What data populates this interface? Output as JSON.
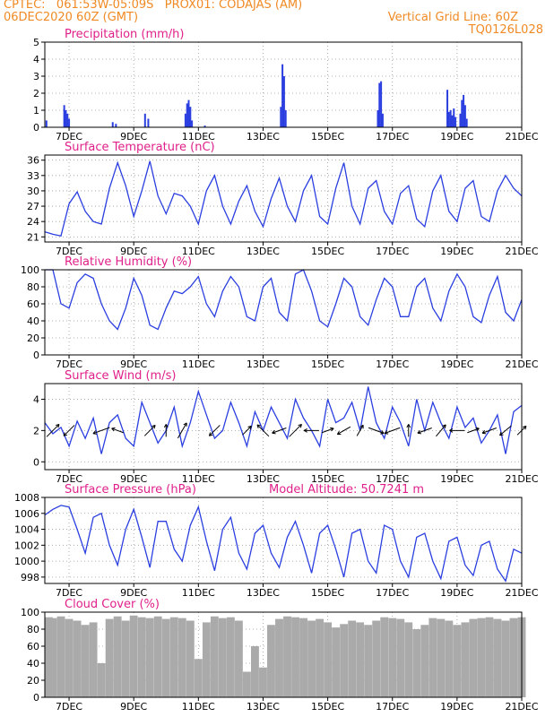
{
  "header": {
    "line1_left": "CPTEC:   061:53W-05:09S   PROX01: CODAJAS (AM)",
    "line2_left": "06DEC2020 60Z (GMT)",
    "line2_right": "Vertical Grid Line: 60Z",
    "line3_right": "TQ0126L028",
    "color": "#f08a24"
  },
  "x_axis": {
    "tick_labels": [
      "7DEC",
      "9DEC",
      "11DEC",
      "13DEC",
      "15DEC",
      "17DEC",
      "19DEC",
      "21DEC"
    ],
    "tick_days": [
      7,
      9,
      11,
      13,
      15,
      17,
      19,
      21
    ],
    "xlim_days": [
      6.25,
      21.0
    ]
  },
  "colors": {
    "line": "#2b3fe0",
    "title": "#e0208a",
    "cloud": "#aaaaaa",
    "wind_arrow": "#000000"
  },
  "chart_data": [
    {
      "id": "precip",
      "type": "bar",
      "title": "Precipitation (mm/h)",
      "ylim": [
        0,
        5
      ],
      "yticks": [
        0,
        1,
        2,
        3,
        4,
        5
      ],
      "grid": true,
      "x_days": [
        6.3,
        6.85,
        6.9,
        6.95,
        7.0,
        8.35,
        8.45,
        9.35,
        9.45,
        10.6,
        10.65,
        10.7,
        10.75,
        10.8,
        11.2,
        13.55,
        13.6,
        13.65,
        13.7,
        16.55,
        16.6,
        16.65,
        16.7,
        18.7,
        18.75,
        18.8,
        18.85,
        18.9,
        18.95,
        19.1,
        19.15,
        19.2,
        19.25,
        19.3
      ],
      "values": [
        0.4,
        1.3,
        1.0,
        0.8,
        0.5,
        0.3,
        0.2,
        0.8,
        0.5,
        0.8,
        1.4,
        1.6,
        1.2,
        0.4,
        0.1,
        1.2,
        3.7,
        3.0,
        1.0,
        1.0,
        2.6,
        2.7,
        0.8,
        2.2,
        0.9,
        1.0,
        0.7,
        1.1,
        0.6,
        0.8,
        1.6,
        1.9,
        1.3,
        0.5
      ]
    },
    {
      "id": "temp",
      "type": "line",
      "title": "Surface Temperature (nC)",
      "ylim": [
        20,
        37
      ],
      "yticks": [
        21,
        24,
        27,
        30,
        33,
        36
      ],
      "grid": true,
      "x_days": [
        6.25,
        6.5,
        6.75,
        7.0,
        7.25,
        7.5,
        7.75,
        8.0,
        8.25,
        8.5,
        8.75,
        9.0,
        9.25,
        9.5,
        9.75,
        10.0,
        10.25,
        10.5,
        10.75,
        11.0,
        11.25,
        11.5,
        11.75,
        12.0,
        12.25,
        12.5,
        12.75,
        13.0,
        13.25,
        13.5,
        13.75,
        14.0,
        14.25,
        14.5,
        14.75,
        15.0,
        15.25,
        15.5,
        15.75,
        16.0,
        16.25,
        16.5,
        16.75,
        17.0,
        17.25,
        17.5,
        17.75,
        18.0,
        18.25,
        18.5,
        18.75,
        19.0,
        19.25,
        19.5,
        19.75,
        20.0,
        20.25,
        20.5,
        20.75,
        21.0
      ],
      "values": [
        22.0,
        21.5,
        21.2,
        27.5,
        29.8,
        26.0,
        24.0,
        23.5,
        30.5,
        35.5,
        31.0,
        25.0,
        30.0,
        35.8,
        29.0,
        25.5,
        29.5,
        29.0,
        27.0,
        23.5,
        30.0,
        33.0,
        27.0,
        23.5,
        28.0,
        31.0,
        26.0,
        23.0,
        28.5,
        32.5,
        27.0,
        24.0,
        30.0,
        33.0,
        25.0,
        23.5,
        30.5,
        35.5,
        27.0,
        23.5,
        30.5,
        32.0,
        26.0,
        23.5,
        29.5,
        31.0,
        24.5,
        23.0,
        30.0,
        33.0,
        26.0,
        24.0,
        30.5,
        32.0,
        25.0,
        24.0,
        30.0,
        33.0,
        30.5,
        29.0
      ]
    },
    {
      "id": "rh",
      "type": "line",
      "title": "Relative Humidity (%)",
      "ylim": [
        0,
        100
      ],
      "yticks": [
        0,
        20,
        40,
        60,
        80,
        100
      ],
      "grid": true,
      "x_days": [
        6.25,
        6.5,
        6.75,
        7.0,
        7.25,
        7.5,
        7.75,
        8.0,
        8.25,
        8.5,
        8.75,
        9.0,
        9.25,
        9.5,
        9.75,
        10.0,
        10.25,
        10.5,
        10.75,
        11.0,
        11.25,
        11.5,
        11.75,
        12.0,
        12.25,
        12.5,
        12.75,
        13.0,
        13.25,
        13.5,
        13.75,
        14.0,
        14.25,
        14.5,
        14.75,
        15.0,
        15.25,
        15.5,
        15.75,
        16.0,
        16.25,
        16.5,
        16.75,
        17.0,
        17.25,
        17.5,
        17.75,
        18.0,
        18.25,
        18.5,
        18.75,
        19.0,
        19.25,
        19.5,
        19.75,
        20.0,
        20.25,
        20.5,
        20.75,
        21.0
      ],
      "values": [
        100,
        100,
        60,
        55,
        85,
        95,
        90,
        60,
        40,
        30,
        55,
        90,
        70,
        35,
        30,
        55,
        75,
        72,
        80,
        92,
        60,
        45,
        75,
        92,
        80,
        45,
        40,
        80,
        90,
        50,
        40,
        95,
        100,
        75,
        40,
        33,
        60,
        90,
        80,
        45,
        35,
        65,
        90,
        80,
        45,
        45,
        80,
        90,
        55,
        40,
        75,
        95,
        80,
        45,
        38,
        70,
        92,
        50,
        40,
        65
      ]
    },
    {
      "id": "wind",
      "type": "line",
      "title": "Surface Wind (m/s)",
      "ylim": [
        -0.5,
        5.0
      ],
      "yticks": [
        0,
        2,
        4
      ],
      "grid": true,
      "x_days": [
        6.25,
        6.5,
        6.75,
        7.0,
        7.25,
        7.5,
        7.75,
        8.0,
        8.25,
        8.5,
        8.75,
        9.0,
        9.25,
        9.5,
        9.75,
        10.0,
        10.25,
        10.5,
        10.75,
        11.0,
        11.25,
        11.5,
        11.75,
        12.0,
        12.25,
        12.5,
        12.75,
        13.0,
        13.25,
        13.5,
        13.75,
        14.0,
        14.25,
        14.5,
        14.75,
        15.0,
        15.25,
        15.5,
        15.75,
        16.0,
        16.25,
        16.5,
        16.75,
        17.0,
        17.25,
        17.5,
        17.75,
        18.0,
        18.25,
        18.5,
        18.75,
        19.0,
        19.25,
        19.5,
        19.75,
        20.0,
        20.25,
        20.5,
        20.75,
        21.0
      ],
      "values": [
        2.5,
        1.8,
        2.2,
        1.0,
        2.6,
        1.5,
        2.8,
        0.5,
        2.5,
        3.0,
        1.5,
        1.0,
        3.8,
        2.5,
        1.2,
        2.0,
        3.5,
        1.0,
        2.5,
        4.5,
        3.0,
        1.5,
        2.0,
        3.8,
        2.5,
        1.0,
        3.2,
        2.0,
        3.5,
        2.5,
        1.5,
        4.0,
        2.8,
        2.0,
        1.0,
        4.0,
        2.5,
        2.8,
        3.8,
        2.0,
        4.8,
        2.5,
        1.5,
        3.5,
        2.5,
        1.0,
        4.0,
        2.0,
        3.8,
        2.5,
        1.5,
        3.5,
        2.2,
        2.8,
        1.2,
        2.0,
        3.0,
        0.5,
        3.2,
        3.6
      ],
      "arrow_days": [
        6.5,
        7.0,
        8.0,
        8.5,
        9.5,
        10.0,
        10.5,
        11.5,
        12.5,
        13.0,
        13.5,
        14.0,
        14.5,
        15.0,
        15.5,
        16.0,
        16.5,
        17.0,
        17.5,
        18.0,
        18.5,
        19.0,
        19.5,
        20.0,
        20.5,
        21.0
      ],
      "arrow_dir_deg": [
        45,
        225,
        200,
        160,
        45,
        90,
        60,
        225,
        45,
        135,
        200,
        45,
        180,
        20,
        210,
        60,
        340,
        200,
        90,
        200,
        50,
        180,
        20,
        200,
        220,
        45
      ],
      "arrow_len": [
        1.4,
        1.2,
        1.4,
        1.0,
        1.2,
        1.0,
        1.4,
        1.2,
        1.0,
        1.3,
        1.2,
        1.4,
        1.2,
        1.0,
        1.2,
        1.0,
        1.3,
        1.3,
        1.0,
        1.2,
        1.2,
        1.2,
        1.0,
        1.2,
        1.2,
        1.0
      ]
    },
    {
      "id": "pressure",
      "type": "line",
      "title": "Surface Pressure (hPa)",
      "subtitle": "Model Altitude: 50.7241 m",
      "ylim": [
        997.2,
        1008
      ],
      "yticks": [
        998,
        1000,
        1002,
        1004,
        1006,
        1008
      ],
      "grid": true,
      "x_days": [
        6.25,
        6.5,
        6.75,
        7.0,
        7.25,
        7.5,
        7.75,
        8.0,
        8.25,
        8.5,
        8.75,
        9.0,
        9.25,
        9.5,
        9.75,
        10.0,
        10.25,
        10.5,
        10.75,
        11.0,
        11.25,
        11.5,
        11.75,
        12.0,
        12.25,
        12.5,
        12.75,
        13.0,
        13.25,
        13.5,
        13.75,
        14.0,
        14.25,
        14.5,
        14.75,
        15.0,
        15.25,
        15.5,
        15.75,
        16.0,
        16.25,
        16.5,
        16.75,
        17.0,
        17.25,
        17.5,
        17.75,
        18.0,
        18.25,
        18.5,
        18.75,
        19.0,
        19.25,
        19.5,
        19.75,
        20.0,
        20.25,
        20.5,
        20.75,
        21.0
      ],
      "values": [
        1005.8,
        1006.5,
        1007.0,
        1006.8,
        1004.0,
        1001.0,
        1005.5,
        1006.0,
        1002.0,
        999.5,
        1004.0,
        1006.5,
        1003.0,
        999.2,
        1005.0,
        1005.0,
        1001.5,
        1000.0,
        1004.5,
        1006.8,
        1002.5,
        998.8,
        1004.0,
        1005.5,
        1001.0,
        999.0,
        1003.5,
        1004.5,
        1001.0,
        999.2,
        1003.0,
        1005.0,
        1002.0,
        998.5,
        1003.5,
        1004.5,
        1001.5,
        998.0,
        1003.5,
        1004.0,
        1000.0,
        998.5,
        1004.5,
        1004.0,
        1000.0,
        998.0,
        1003.0,
        1003.5,
        1000.0,
        997.8,
        1002.5,
        1003.0,
        999.5,
        998.2,
        1002.0,
        1002.5,
        999.0,
        997.5,
        1001.5,
        1001.0
      ]
    },
    {
      "id": "cloud",
      "type": "bar",
      "title": "Cloud Cover (%)",
      "ylim": [
        0,
        100
      ],
      "yticks": [
        0,
        20,
        40,
        60,
        80,
        100
      ],
      "grid": true,
      "x_days": [
        6.25,
        6.5,
        6.75,
        7.0,
        7.25,
        7.5,
        7.75,
        8.0,
        8.25,
        8.5,
        8.75,
        9.0,
        9.25,
        9.5,
        9.75,
        10.0,
        10.25,
        10.5,
        10.75,
        11.0,
        11.25,
        11.5,
        11.75,
        12.0,
        12.25,
        12.5,
        12.75,
        13.0,
        13.25,
        13.5,
        13.75,
        14.0,
        14.25,
        14.5,
        14.75,
        15.0,
        15.25,
        15.5,
        15.75,
        16.0,
        16.25,
        16.5,
        16.75,
        17.0,
        17.25,
        17.5,
        17.75,
        18.0,
        18.25,
        18.5,
        18.75,
        19.0,
        19.25,
        19.5,
        19.75,
        20.0,
        20.25,
        20.5,
        20.75,
        21.0
      ],
      "values": [
        94,
        93,
        95,
        92,
        90,
        85,
        88,
        40,
        92,
        95,
        90,
        96,
        94,
        93,
        95,
        92,
        94,
        93,
        90,
        45,
        88,
        95,
        93,
        94,
        90,
        30,
        60,
        35,
        85,
        92,
        95,
        94,
        93,
        90,
        92,
        88,
        82,
        86,
        90,
        88,
        85,
        90,
        94,
        93,
        92,
        88,
        80,
        85,
        93,
        92,
        90,
        85,
        88,
        92,
        93,
        94,
        92,
        90,
        93,
        94
      ]
    }
  ]
}
